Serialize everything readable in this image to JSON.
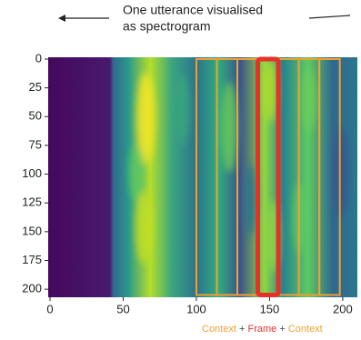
{
  "chart_data": {
    "type": "spectrogram",
    "title_lines": [
      "One utterance visualised",
      "as spectrogram"
    ],
    "xlim": [
      0,
      210
    ],
    "xticks": [
      0,
      50,
      100,
      150,
      200
    ],
    "ylim": [
      0,
      207
    ],
    "y_inverted": true,
    "yticks": [
      0,
      25,
      50,
      75,
      100,
      125,
      150,
      175,
      200
    ],
    "context_windows": [
      [
        100,
        114
      ],
      [
        114,
        128
      ],
      [
        128,
        142
      ],
      [
        156,
        170
      ],
      [
        170,
        184
      ],
      [
        184,
        198
      ]
    ],
    "frame_window": [
      142,
      156
    ],
    "window_y": [
      0,
      205
    ],
    "context_color": "#f0a030",
    "frame_color": "#e8302a",
    "plus_color": "#444444",
    "legend": [
      {
        "text": "Context",
        "role": "context"
      },
      {
        "text": "+",
        "role": "plus"
      },
      {
        "text": "Frame",
        "role": "frame"
      },
      {
        "text": "+",
        "role": "plus"
      },
      {
        "text": "Context",
        "role": "context"
      }
    ]
  }
}
